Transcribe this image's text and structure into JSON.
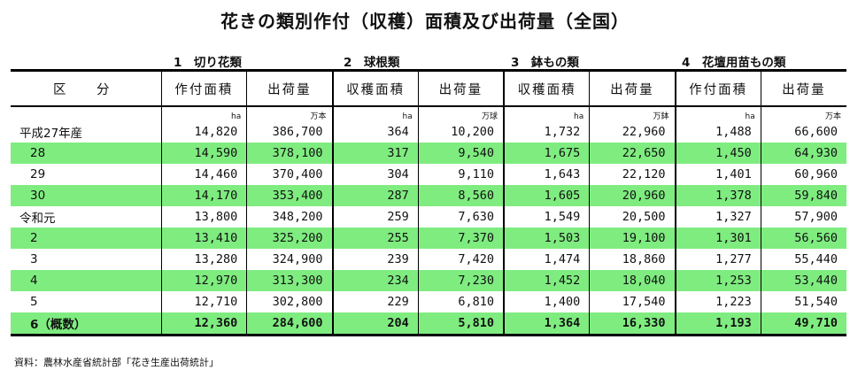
{
  "title": "花きの類別作付（収穫）面積及び出荷量（全国）",
  "categories": [
    "1　切り花類",
    "2　球根類",
    "3　鉢もの類",
    "4　花壇用苗もの類"
  ],
  "headers": [
    "区　分",
    "作付面積",
    "出荷量",
    "収穫面積",
    "出荷量",
    "収穫面積",
    "出荷量",
    "作付面積",
    "出荷量"
  ],
  "units": [
    "",
    "ha",
    "万本",
    "ha",
    "万球",
    "ha",
    "万鉢",
    "ha",
    "万本"
  ],
  "rows": [
    {
      "label": "平成27年産",
      "values": [
        "14,820",
        "386,700",
        "364",
        "10,200",
        "1,732",
        "22,960",
        "1,488",
        "66,600"
      ]
    },
    {
      "label": "28",
      "values": [
        "14,590",
        "378,100",
        "317",
        "9,540",
        "1,675",
        "22,650",
        "1,450",
        "64,930"
      ]
    },
    {
      "label": "29",
      "values": [
        "14,460",
        "370,400",
        "304",
        "9,110",
        "1,643",
        "22,120",
        "1,401",
        "60,960"
      ]
    },
    {
      "label": "30",
      "values": [
        "14,170",
        "353,400",
        "287",
        "8,560",
        "1,605",
        "20,960",
        "1,378",
        "59,840"
      ]
    },
    {
      "label": "令和元",
      "values": [
        "13,800",
        "348,200",
        "259",
        "7,630",
        "1,549",
        "20,500",
        "1,327",
        "57,900"
      ]
    },
    {
      "label": "2",
      "values": [
        "13,410",
        "325,200",
        "255",
        "7,370",
        "1,503",
        "19,100",
        "1,301",
        "56,560"
      ]
    },
    {
      "label": "3",
      "values": [
        "13,280",
        "324,900",
        "239",
        "7,420",
        "1,474",
        "18,860",
        "1,277",
        "55,440"
      ]
    },
    {
      "label": "4",
      "values": [
        "12,970",
        "313,300",
        "234",
        "7,230",
        "1,452",
        "18,040",
        "1,253",
        "53,440"
      ]
    },
    {
      "label": "5",
      "values": [
        "12,710",
        "302,800",
        "229",
        "6,810",
        "1,400",
        "17,540",
        "1,223",
        "51,540"
      ]
    },
    {
      "label": "6（概数）",
      "values": [
        "12,360",
        "284,600",
        "204",
        "5,810",
        "1,364",
        "16,330",
        "1,193",
        "49,710"
      ]
    }
  ],
  "highlight_color": "#7fec80",
  "source": "資料：農林水産省統計部「花き生産出荷統計」"
}
